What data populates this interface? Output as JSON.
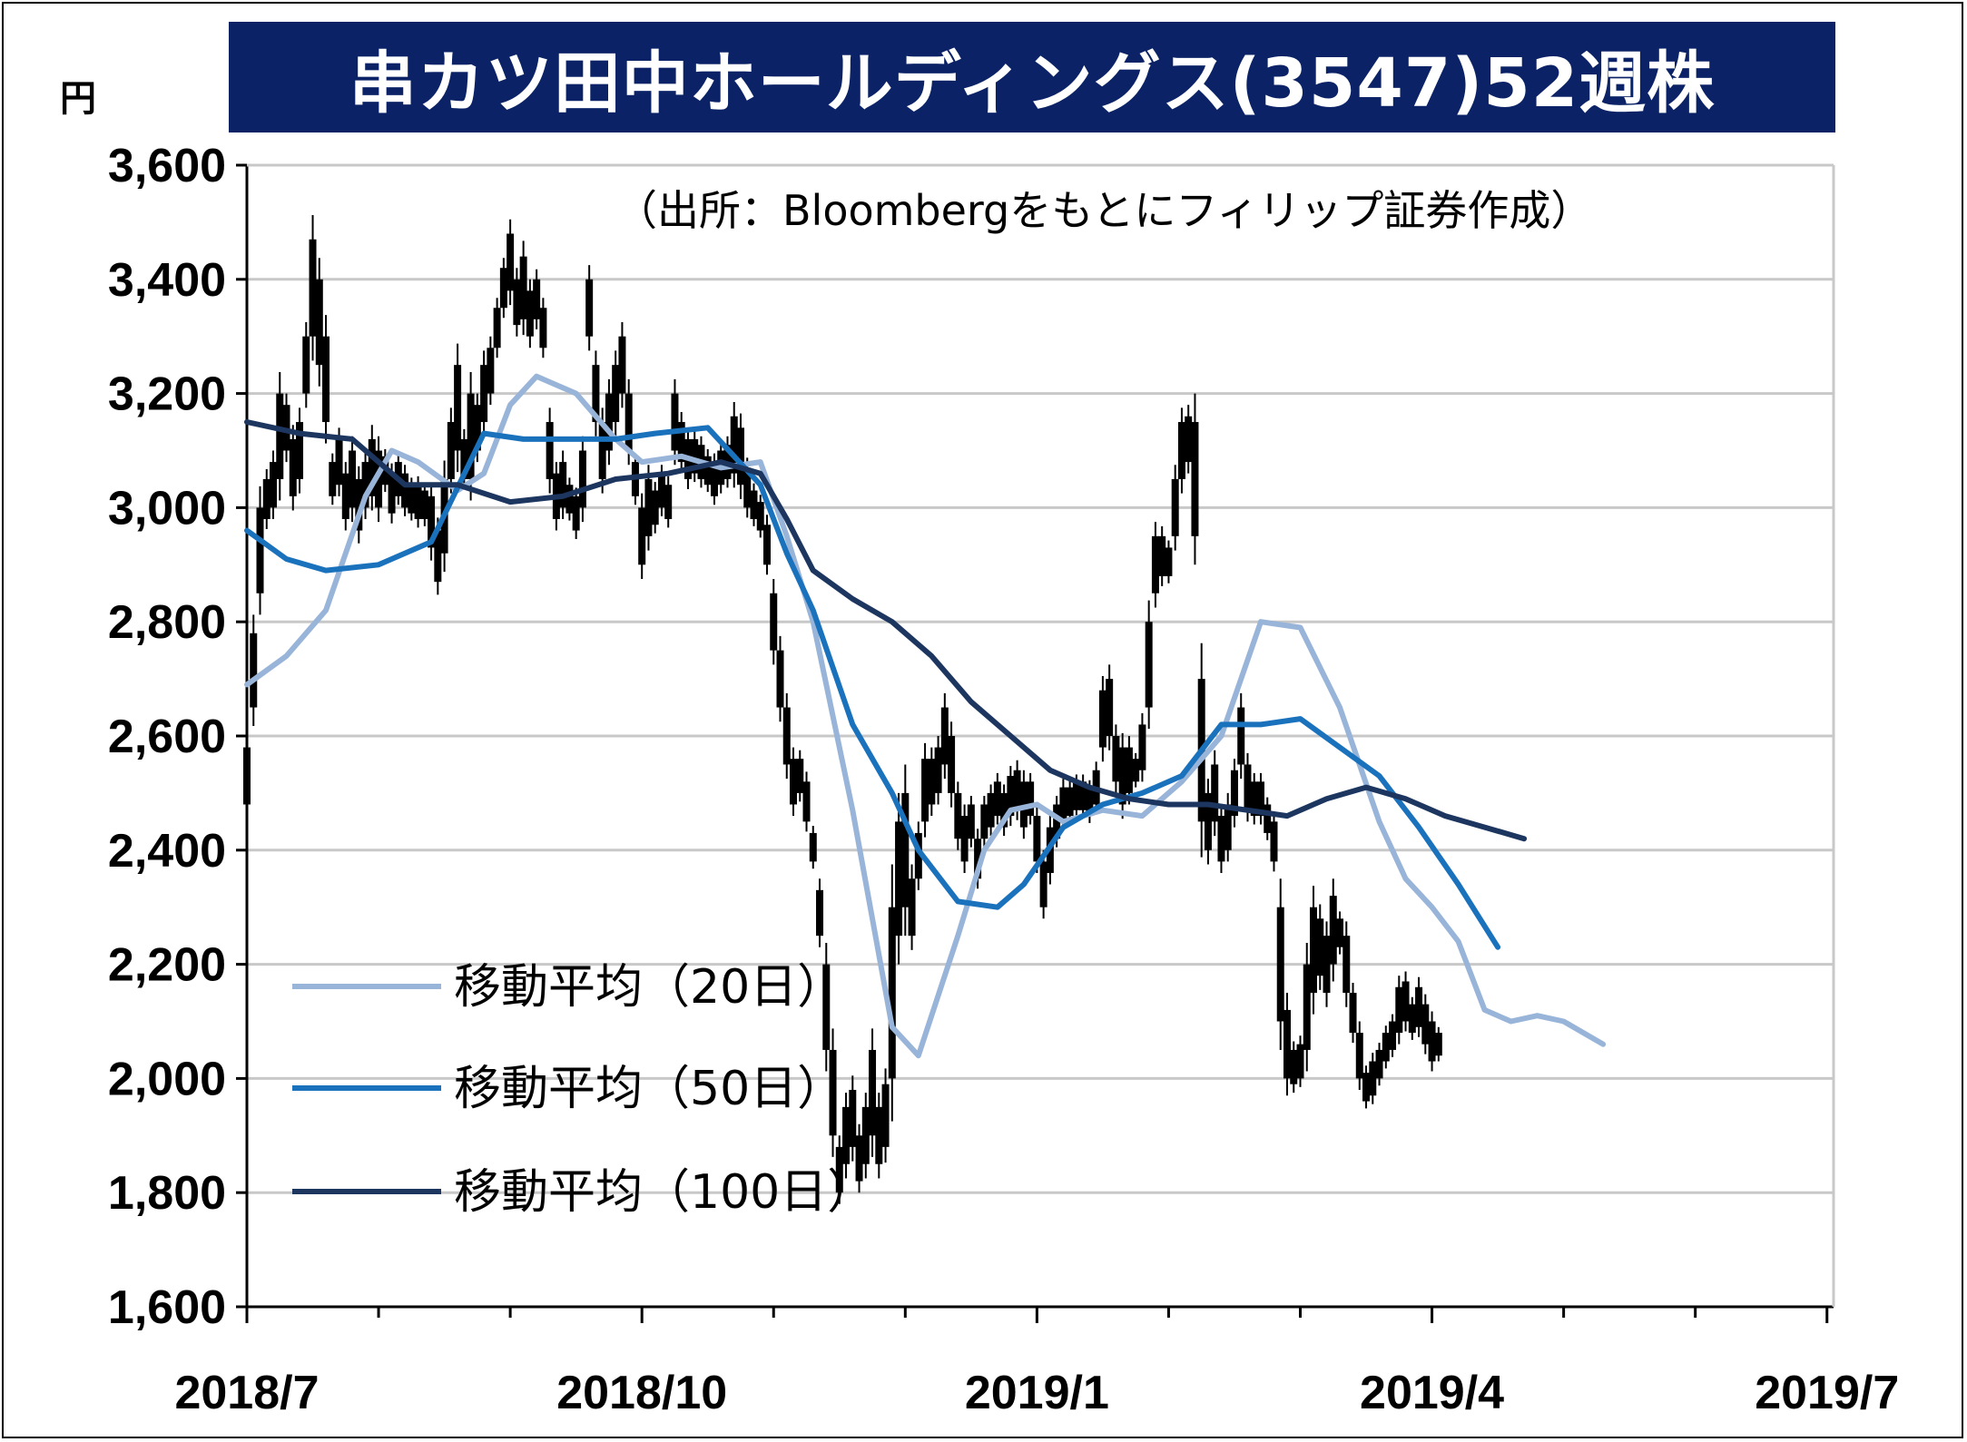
{
  "title": "串カツ田中ホールディングス(3547)52週株",
  "source": "（出所：Bloombergをもとにフィリップ証券作成）",
  "y_unit": "円",
  "colors": {
    "title_bg": "#0b2366",
    "candle": "#000000",
    "ma20": "#98b4d8",
    "ma50": "#1a72bd",
    "ma100": "#1c3660",
    "grid": "#c8c8c8"
  },
  "chart_data": {
    "type": "line",
    "ylim": [
      1600,
      3600
    ],
    "y_ticks": [
      "3,600",
      "3,400",
      "3,200",
      "3,000",
      "2,800",
      "2,600",
      "2,400",
      "2,200",
      "2,000",
      "1,800",
      "1,600"
    ],
    "x_ticks": [
      "2018/7",
      "2018/10",
      "2019/1",
      "2019/4",
      "2019/7"
    ],
    "grid": true,
    "legend_position": "bottom-left",
    "x_month_index": [
      0,
      1,
      2,
      3,
      4,
      5,
      6,
      7,
      8,
      9,
      10,
      11,
      12
    ],
    "series": [
      {
        "name": "移動平均（20日）",
        "color": "#98b4d8",
        "x": [
          0,
          0.3,
          0.6,
          0.9,
          1.1,
          1.3,
          1.6,
          1.8,
          2.0,
          2.2,
          2.5,
          2.8,
          3.0,
          3.3,
          3.6,
          3.9,
          4.1,
          4.3,
          4.6,
          4.9,
          5.1,
          5.4,
          5.6,
          5.8,
          6.0,
          6.2,
          6.5,
          6.8,
          7.1,
          7.4,
          7.7,
          8.0,
          8.3,
          8.6,
          8.8,
          9.0,
          9.2,
          9.4,
          9.6,
          9.8,
          10.0,
          10.3,
          10.6,
          10.9,
          11.2,
          11.5,
          11.8,
          12.1
        ],
        "values": [
          2690,
          2740,
          2820,
          3020,
          3100,
          3080,
          3030,
          3060,
          3180,
          3230,
          3200,
          3120,
          3080,
          3090,
          3070,
          3080,
          2950,
          2800,
          2470,
          2090,
          2040,
          2250,
          2400,
          2470,
          2480,
          2450,
          2470,
          2460,
          2520,
          2600,
          2800,
          2790,
          2650,
          2450,
          2350,
          2300,
          2240,
          2120,
          2100,
          2110,
          2100,
          2060,
          null,
          null,
          null,
          null,
          null,
          null
        ]
      },
      {
        "name": "移動平均（50日）",
        "color": "#1a72bd",
        "x": [
          0,
          0.3,
          0.6,
          1.0,
          1.4,
          1.8,
          2.1,
          2.5,
          2.8,
          3.1,
          3.5,
          3.9,
          4.1,
          4.3,
          4.6,
          4.9,
          5.1,
          5.4,
          5.7,
          5.9,
          6.2,
          6.5,
          6.8,
          7.1,
          7.4,
          7.7,
          8.0,
          8.3,
          8.6,
          8.9,
          9.2,
          9.5,
          9.8,
          10.1
        ],
        "values": [
          2960,
          2910,
          2890,
          2900,
          2940,
          3130,
          3120,
          3120,
          3120,
          3130,
          3140,
          3040,
          2920,
          2820,
          2620,
          2500,
          2400,
          2310,
          2300,
          2340,
          2440,
          2480,
          2500,
          2530,
          2620,
          2620,
          2630,
          2580,
          2530,
          2440,
          2340,
          2230,
          null,
          null
        ]
      },
      {
        "name": "移動平均（100日）",
        "color": "#1c3660",
        "x": [
          0,
          0.4,
          0.8,
          1.2,
          1.6,
          2.0,
          2.4,
          2.8,
          3.2,
          3.6,
          3.9,
          4.1,
          4.3,
          4.6,
          4.9,
          5.2,
          5.5,
          5.8,
          6.1,
          6.4,
          6.7,
          7.0,
          7.3,
          7.6,
          7.9,
          8.2,
          8.5,
          8.8,
          9.1,
          9.4,
          9.7,
          10.0
        ],
        "values": [
          3150,
          3130,
          3120,
          3040,
          3040,
          3010,
          3020,
          3050,
          3060,
          3080,
          3060,
          2980,
          2890,
          2840,
          2800,
          2740,
          2660,
          2600,
          2540,
          2510,
          2490,
          2480,
          2480,
          2470,
          2460,
          2490,
          2510,
          2490,
          2460,
          2440,
          2420,
          null
        ]
      }
    ],
    "candles_note": "daily OHLC candlesticks, black",
    "candles": [
      [
        0.0,
        2480,
        2580
      ],
      [
        0.05,
        2650,
        2780
      ],
      [
        0.1,
        2850,
        3000
      ],
      [
        0.15,
        2980,
        3050
      ],
      [
        0.2,
        3000,
        3080
      ],
      [
        0.25,
        3050,
        3200
      ],
      [
        0.3,
        3100,
        3180
      ],
      [
        0.35,
        3020,
        3120
      ],
      [
        0.4,
        3050,
        3150
      ],
      [
        0.45,
        3200,
        3300
      ],
      [
        0.5,
        3300,
        3470
      ],
      [
        0.55,
        3250,
        3400
      ],
      [
        0.6,
        3150,
        3300
      ],
      [
        0.65,
        3020,
        3080
      ],
      [
        0.7,
        3040,
        3120
      ],
      [
        0.75,
        2980,
        3060
      ],
      [
        0.8,
        3000,
        3100
      ],
      [
        0.85,
        2960,
        3050
      ],
      [
        0.9,
        3000,
        3080
      ],
      [
        0.95,
        3020,
        3120
      ],
      [
        1.0,
        3000,
        3100
      ],
      [
        1.05,
        3040,
        3090
      ],
      [
        1.1,
        2990,
        3060
      ],
      [
        1.15,
        3020,
        3080
      ],
      [
        1.2,
        3000,
        3060
      ],
      [
        1.25,
        2990,
        3040
      ],
      [
        1.3,
        2980,
        3040
      ],
      [
        1.35,
        2980,
        3030
      ],
      [
        1.4,
        2930,
        3020
      ],
      [
        1.45,
        2870,
        2960
      ],
      [
        1.5,
        2920,
        3050
      ],
      [
        1.55,
        3050,
        3150
      ],
      [
        1.6,
        3100,
        3250
      ],
      [
        1.65,
        3050,
        3120
      ],
      [
        1.7,
        3050,
        3200
      ],
      [
        1.75,
        3100,
        3180
      ],
      [
        1.8,
        3150,
        3250
      ],
      [
        1.85,
        3200,
        3280
      ],
      [
        1.9,
        3280,
        3350
      ],
      [
        1.95,
        3350,
        3420
      ],
      [
        2.0,
        3380,
        3480
      ],
      [
        2.05,
        3320,
        3400
      ],
      [
        2.1,
        3330,
        3440
      ],
      [
        2.15,
        3300,
        3380
      ],
      [
        2.2,
        3330,
        3400
      ],
      [
        2.25,
        3280,
        3350
      ],
      [
        2.3,
        3050,
        3150
      ],
      [
        2.35,
        2980,
        3060
      ],
      [
        2.4,
        3000,
        3080
      ],
      [
        2.45,
        2990,
        3040
      ],
      [
        2.5,
        2960,
        3020
      ],
      [
        2.55,
        3000,
        3100
      ],
      [
        2.6,
        3300,
        3400
      ],
      [
        2.65,
        3150,
        3250
      ],
      [
        2.7,
        3050,
        3150
      ],
      [
        2.75,
        3100,
        3200
      ],
      [
        2.8,
        3150,
        3250
      ],
      [
        2.85,
        3200,
        3300
      ],
      [
        2.9,
        3100,
        3200
      ],
      [
        2.95,
        3020,
        3080
      ],
      [
        3.0,
        2900,
        3000
      ],
      [
        3.05,
        2950,
        3050
      ],
      [
        3.1,
        2970,
        3030
      ],
      [
        3.15,
        3000,
        3060
      ],
      [
        3.2,
        2980,
        3040
      ],
      [
        3.25,
        3100,
        3200
      ],
      [
        3.3,
        3080,
        3150
      ],
      [
        3.35,
        3050,
        3120
      ],
      [
        3.4,
        3060,
        3120
      ],
      [
        3.45,
        3050,
        3110
      ],
      [
        3.5,
        3040,
        3090
      ],
      [
        3.55,
        3020,
        3080
      ],
      [
        3.6,
        3040,
        3100
      ],
      [
        3.65,
        3050,
        3110
      ],
      [
        3.7,
        3060,
        3160
      ],
      [
        3.75,
        3040,
        3140
      ],
      [
        3.8,
        3000,
        3070
      ],
      [
        3.85,
        2980,
        3030
      ],
      [
        3.9,
        2960,
        3010
      ],
      [
        3.95,
        2900,
        2970
      ],
      [
        4.0,
        2750,
        2850
      ],
      [
        4.05,
        2650,
        2750
      ],
      [
        4.1,
        2550,
        2650
      ],
      [
        4.15,
        2480,
        2560
      ],
      [
        4.2,
        2500,
        2560
      ],
      [
        4.25,
        2450,
        2520
      ],
      [
        4.3,
        2380,
        2430
      ],
      [
        4.35,
        2250,
        2330
      ],
      [
        4.4,
        2050,
        2200
      ],
      [
        4.45,
        1900,
        2050
      ],
      [
        4.5,
        1800,
        1880
      ],
      [
        4.55,
        1850,
        1950
      ],
      [
        4.6,
        1880,
        1980
      ],
      [
        4.65,
        1820,
        1900
      ],
      [
        4.7,
        1850,
        1950
      ],
      [
        4.75,
        1900,
        2050
      ],
      [
        4.8,
        1850,
        1950
      ],
      [
        4.85,
        1880,
        1990
      ],
      [
        4.9,
        2000,
        2300
      ],
      [
        4.95,
        2250,
        2450
      ],
      [
        5.0,
        2300,
        2500
      ],
      [
        5.05,
        2250,
        2350
      ],
      [
        5.1,
        2350,
        2430
      ],
      [
        5.15,
        2450,
        2560
      ],
      [
        5.2,
        2480,
        2560
      ],
      [
        5.25,
        2500,
        2580
      ],
      [
        5.3,
        2550,
        2650
      ],
      [
        5.35,
        2500,
        2600
      ],
      [
        5.4,
        2420,
        2500
      ],
      [
        5.45,
        2380,
        2460
      ],
      [
        5.5,
        2420,
        2480
      ],
      [
        5.55,
        2350,
        2420
      ],
      [
        5.6,
        2420,
        2480
      ],
      [
        5.65,
        2440,
        2500
      ],
      [
        5.7,
        2460,
        2520
      ],
      [
        5.75,
        2440,
        2500
      ],
      [
        5.8,
        2460,
        2530
      ],
      [
        5.85,
        2470,
        2540
      ],
      [
        5.9,
        2440,
        2520
      ],
      [
        5.95,
        2460,
        2520
      ],
      [
        6.0,
        2380,
        2460
      ],
      [
        6.05,
        2300,
        2380
      ],
      [
        6.1,
        2360,
        2440
      ],
      [
        6.15,
        2420,
        2480
      ],
      [
        6.2,
        2450,
        2510
      ],
      [
        6.25,
        2460,
        2510
      ],
      [
        6.3,
        2470,
        2520
      ],
      [
        6.35,
        2470,
        2520
      ],
      [
        6.4,
        2460,
        2510
      ],
      [
        6.45,
        2480,
        2540
      ],
      [
        6.5,
        2580,
        2680
      ],
      [
        6.55,
        2600,
        2700
      ],
      [
        6.6,
        2520,
        2600
      ],
      [
        6.65,
        2480,
        2580
      ],
      [
        6.7,
        2500,
        2580
      ],
      [
        6.75,
        2520,
        2560
      ],
      [
        6.8,
        2540,
        2620
      ],
      [
        6.85,
        2650,
        2800
      ],
      [
        6.9,
        2850,
        2950
      ],
      [
        6.95,
        2880,
        2950
      ],
      [
        7.0,
        2880,
        2930
      ],
      [
        7.05,
        2950,
        3050
      ],
      [
        7.1,
        3050,
        3150
      ],
      [
        7.15,
        3080,
        3160
      ],
      [
        7.2,
        2950,
        3150
      ],
      [
        7.25,
        2450,
        2700
      ],
      [
        7.3,
        2400,
        2500
      ],
      [
        7.35,
        2450,
        2550
      ],
      [
        7.4,
        2380,
        2460
      ],
      [
        7.45,
        2400,
        2480
      ],
      [
        7.5,
        2460,
        2540
      ],
      [
        7.55,
        2550,
        2650
      ],
      [
        7.6,
        2470,
        2550
      ],
      [
        7.65,
        2460,
        2520
      ],
      [
        7.7,
        2460,
        2520
      ],
      [
        7.75,
        2430,
        2480
      ],
      [
        7.8,
        2380,
        2450
      ],
      [
        7.85,
        2100,
        2300
      ],
      [
        7.9,
        2000,
        2120
      ],
      [
        7.95,
        1990,
        2050
      ],
      [
        8.0,
        2000,
        2060
      ],
      [
        8.05,
        2050,
        2200
      ],
      [
        8.1,
        2150,
        2300
      ],
      [
        8.15,
        2180,
        2280
      ],
      [
        8.2,
        2150,
        2250
      ],
      [
        8.25,
        2200,
        2320
      ],
      [
        8.3,
        2230,
        2280
      ],
      [
        8.35,
        2150,
        2250
      ],
      [
        8.4,
        2080,
        2150
      ],
      [
        8.45,
        2000,
        2080
      ],
      [
        8.5,
        1960,
        2010
      ],
      [
        8.55,
        1970,
        2030
      ],
      [
        8.6,
        2000,
        2050
      ],
      [
        8.65,
        2030,
        2080
      ],
      [
        8.7,
        2050,
        2100
      ],
      [
        8.75,
        2080,
        2160
      ],
      [
        8.8,
        2100,
        2170
      ],
      [
        8.85,
        2080,
        2130
      ],
      [
        8.9,
        2090,
        2160
      ],
      [
        8.95,
        2060,
        2130
      ],
      [
        9.0,
        2030,
        2100
      ],
      [
        9.05,
        2040,
        2080
      ]
    ]
  },
  "legend": [
    {
      "label": "移動平均（20日）",
      "color": "#98b4d8"
    },
    {
      "label": "移動平均（50日）",
      "color": "#1a72bd"
    },
    {
      "label": "移動平均（100日）",
      "color": "#1c3660"
    }
  ]
}
